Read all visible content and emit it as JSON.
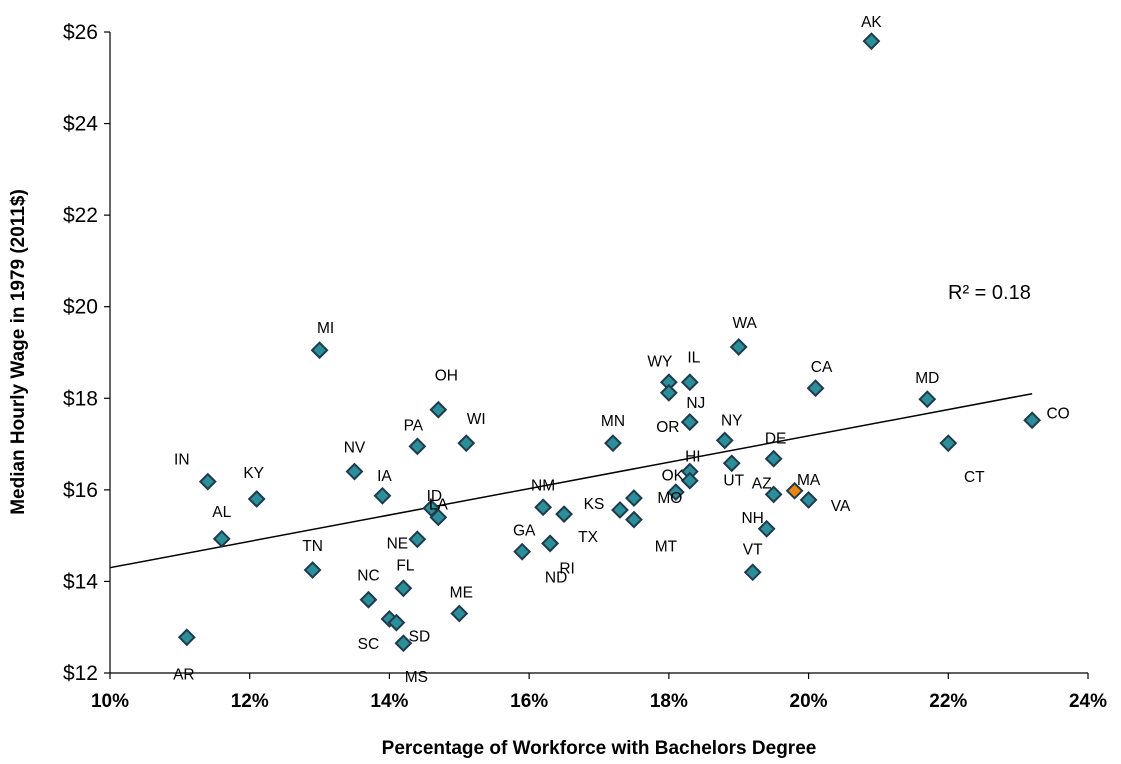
{
  "chart_data": {
    "type": "scatter",
    "title": "",
    "xlabel": "Percentage of Workforce with Bachelors Degree",
    "ylabel": "Median Hourly Wage in 1979 (2011$)",
    "xlim": [
      10,
      24
    ],
    "ylim": [
      12,
      26
    ],
    "x_ticks": [
      10,
      12,
      14,
      16,
      18,
      20,
      22,
      24
    ],
    "x_tick_labels": [
      "10%",
      "12%",
      "14%",
      "16%",
      "18%",
      "20%",
      "22%",
      "24%"
    ],
    "y_ticks": [
      12,
      14,
      16,
      18,
      20,
      22,
      24,
      26
    ],
    "y_tick_labels": [
      "$12",
      "$14",
      "$16",
      "$18",
      "$20",
      "$22",
      "$24",
      "$26"
    ],
    "grid": false,
    "legend": "none",
    "marker": "diamond",
    "marker_color": "#2a8f98",
    "marker_edge": "#1f3a4d",
    "highlight_color": "#e8860d",
    "trendline": {
      "x": [
        10,
        23.2
      ],
      "y": [
        14.3,
        18.1
      ],
      "color": "#000000"
    },
    "annotation": "R² = 0.18",
    "points": [
      {
        "label": "AK",
        "x": 20.9,
        "y": 25.8
      },
      {
        "label": "MI",
        "x": 13.0,
        "y": 19.05
      },
      {
        "label": "WA",
        "x": 19.0,
        "y": 19.12
      },
      {
        "label": "WY",
        "x": 18.0,
        "y": 18.35
      },
      {
        "label": "",
        "x": 18.0,
        "y": 18.12
      },
      {
        "label": "IL",
        "x": 18.3,
        "y": 18.35
      },
      {
        "label": "CA",
        "x": 20.1,
        "y": 18.22
      },
      {
        "label": "MD",
        "x": 21.7,
        "y": 17.98
      },
      {
        "label": "OH",
        "x": 14.7,
        "y": 17.75
      },
      {
        "label": "CO",
        "x": 23.2,
        "y": 17.52
      },
      {
        "label": "NJ",
        "x": 18.3,
        "y": 17.48
      },
      {
        "label": "OR",
        "x": 18.3,
        "y": 17.48
      },
      {
        "label": "NY",
        "x": 18.8,
        "y": 17.08
      },
      {
        "label": "MN",
        "x": 17.2,
        "y": 17.02
      },
      {
        "label": "PA",
        "x": 14.4,
        "y": 16.95
      },
      {
        "label": "WI",
        "x": 15.1,
        "y": 17.02
      },
      {
        "label": "CT",
        "x": 22.0,
        "y": 17.02
      },
      {
        "label": "DE",
        "x": 19.5,
        "y": 16.68
      },
      {
        "label": "UT",
        "x": 18.9,
        "y": 16.58
      },
      {
        "label": "HI",
        "x": 18.3,
        "y": 16.4
      },
      {
        "label": "NV",
        "x": 13.5,
        "y": 16.4
      },
      {
        "label": "IN",
        "x": 11.4,
        "y": 16.18
      },
      {
        "label": "OK",
        "x": 18.3,
        "y": 16.2
      },
      {
        "label": "MO",
        "x": 18.1,
        "y": 15.95
      },
      {
        "label": "AZ",
        "x": 19.5,
        "y": 15.9
      },
      {
        "label": "MA",
        "x": 19.8,
        "y": 15.98,
        "highlight": true
      },
      {
        "label": "VA",
        "x": 20.0,
        "y": 15.78
      },
      {
        "label": "IA",
        "x": 13.9,
        "y": 15.87
      },
      {
        "label": "KY",
        "x": 12.1,
        "y": 15.8
      },
      {
        "label": "",
        "x": 17.5,
        "y": 15.82
      },
      {
        "label": "ID",
        "x": 14.6,
        "y": 15.6
      },
      {
        "label": "NM",
        "x": 16.2,
        "y": 15.62
      },
      {
        "label": "TX",
        "x": 16.5,
        "y": 15.47
      },
      {
        "label": "KS",
        "x": 17.3,
        "y": 15.56
      },
      {
        "label": "LA",
        "x": 14.7,
        "y": 15.4
      },
      {
        "label": "MT",
        "x": 17.5,
        "y": 15.35
      },
      {
        "label": "NH",
        "x": 19.4,
        "y": 15.15
      },
      {
        "label": "AL",
        "x": 11.6,
        "y": 14.93
      },
      {
        "label": "NE",
        "x": 14.4,
        "y": 14.92
      },
      {
        "label": "RI",
        "x": 16.3,
        "y": 14.83
      },
      {
        "label": "GA",
        "x": 15.9,
        "y": 14.65
      },
      {
        "label": "TN",
        "x": 12.9,
        "y": 14.25
      },
      {
        "label": "VT",
        "x": 19.2,
        "y": 14.2
      },
      {
        "label": "FL",
        "x": 14.2,
        "y": 13.85
      },
      {
        "label": "NC",
        "x": 13.7,
        "y": 13.6
      },
      {
        "label": "ME",
        "x": 15.0,
        "y": 13.3
      },
      {
        "label": "SC",
        "x": 14.0,
        "y": 13.18
      },
      {
        "label": "SD",
        "x": 14.1,
        "y": 13.1
      },
      {
        "label": "MS",
        "x": 14.2,
        "y": 12.65
      },
      {
        "label": "AR",
        "x": 11.1,
        "y": 12.78
      },
      {
        "label": "ND",
        "x": 16.3,
        "y": 14.83
      }
    ]
  }
}
